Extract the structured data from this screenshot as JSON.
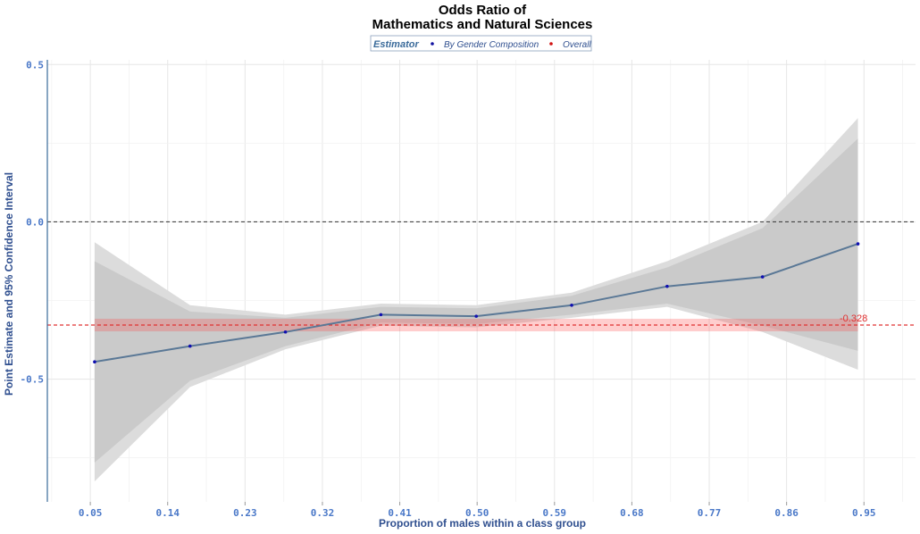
{
  "chart_data": {
    "type": "line",
    "title_line1": "Odds Ratio of",
    "title_line2": "Mathematics and Natural Sciences",
    "xlabel": "Proportion of males within a class group",
    "ylabel": "Point Estimate and 95% Confidence Interval",
    "xlim": [
      0.0,
      1.01
    ],
    "ylim": [
      -0.89,
      0.515
    ],
    "x_ticks": [
      0.05,
      0.14,
      0.23,
      0.32,
      0.41,
      0.5,
      0.59,
      0.68,
      0.77,
      0.86,
      0.95
    ],
    "x_tick_labels": [
      "0.05",
      "0.14",
      "0.23",
      "0.32",
      "0.41",
      "0.50",
      "0.59",
      "0.68",
      "0.77",
      "0.86",
      "0.95"
    ],
    "y_ticks": [
      0.5,
      0.0,
      -0.5
    ],
    "y_tick_labels": [
      "0.5",
      "0.0",
      "-0.5"
    ],
    "legend": {
      "title": "Estimator",
      "position": "top",
      "items": [
        {
          "label": "By Gender Composition",
          "color": "#1010a0"
        },
        {
          "label": "Overall",
          "color": "#d01010"
        }
      ]
    },
    "series": [
      {
        "name": "By Gender Composition",
        "x": [
          0.055,
          0.166,
          0.277,
          0.388,
          0.499,
          0.61,
          0.721,
          0.832,
          0.943
        ],
        "y": [
          -0.445,
          -0.395,
          -0.35,
          -0.295,
          -0.3,
          -0.265,
          -0.205,
          -0.175,
          -0.07
        ],
        "ci95_lower": [
          -0.825,
          -0.525,
          -0.405,
          -0.33,
          -0.335,
          -0.305,
          -0.27,
          -0.35,
          -0.47
        ],
        "ci95_upper": [
          -0.065,
          -0.265,
          -0.295,
          -0.26,
          -0.265,
          -0.225,
          -0.125,
          0.0,
          0.33
        ],
        "ci90_lower": [
          -0.765,
          -0.505,
          -0.395,
          -0.32,
          -0.325,
          -0.295,
          -0.26,
          -0.33,
          -0.41
        ],
        "ci90_upper": [
          -0.125,
          -0.285,
          -0.305,
          -0.27,
          -0.275,
          -0.235,
          -0.145,
          -0.02,
          0.265
        ],
        "line_color": "#5a7896",
        "point_color": "#1010b0"
      }
    ],
    "overall": {
      "value": -0.328,
      "label": "-0.328",
      "band": [
        -0.348,
        -0.308
      ],
      "color": "#e03030"
    },
    "zero_line": 0.0,
    "grid": true
  }
}
